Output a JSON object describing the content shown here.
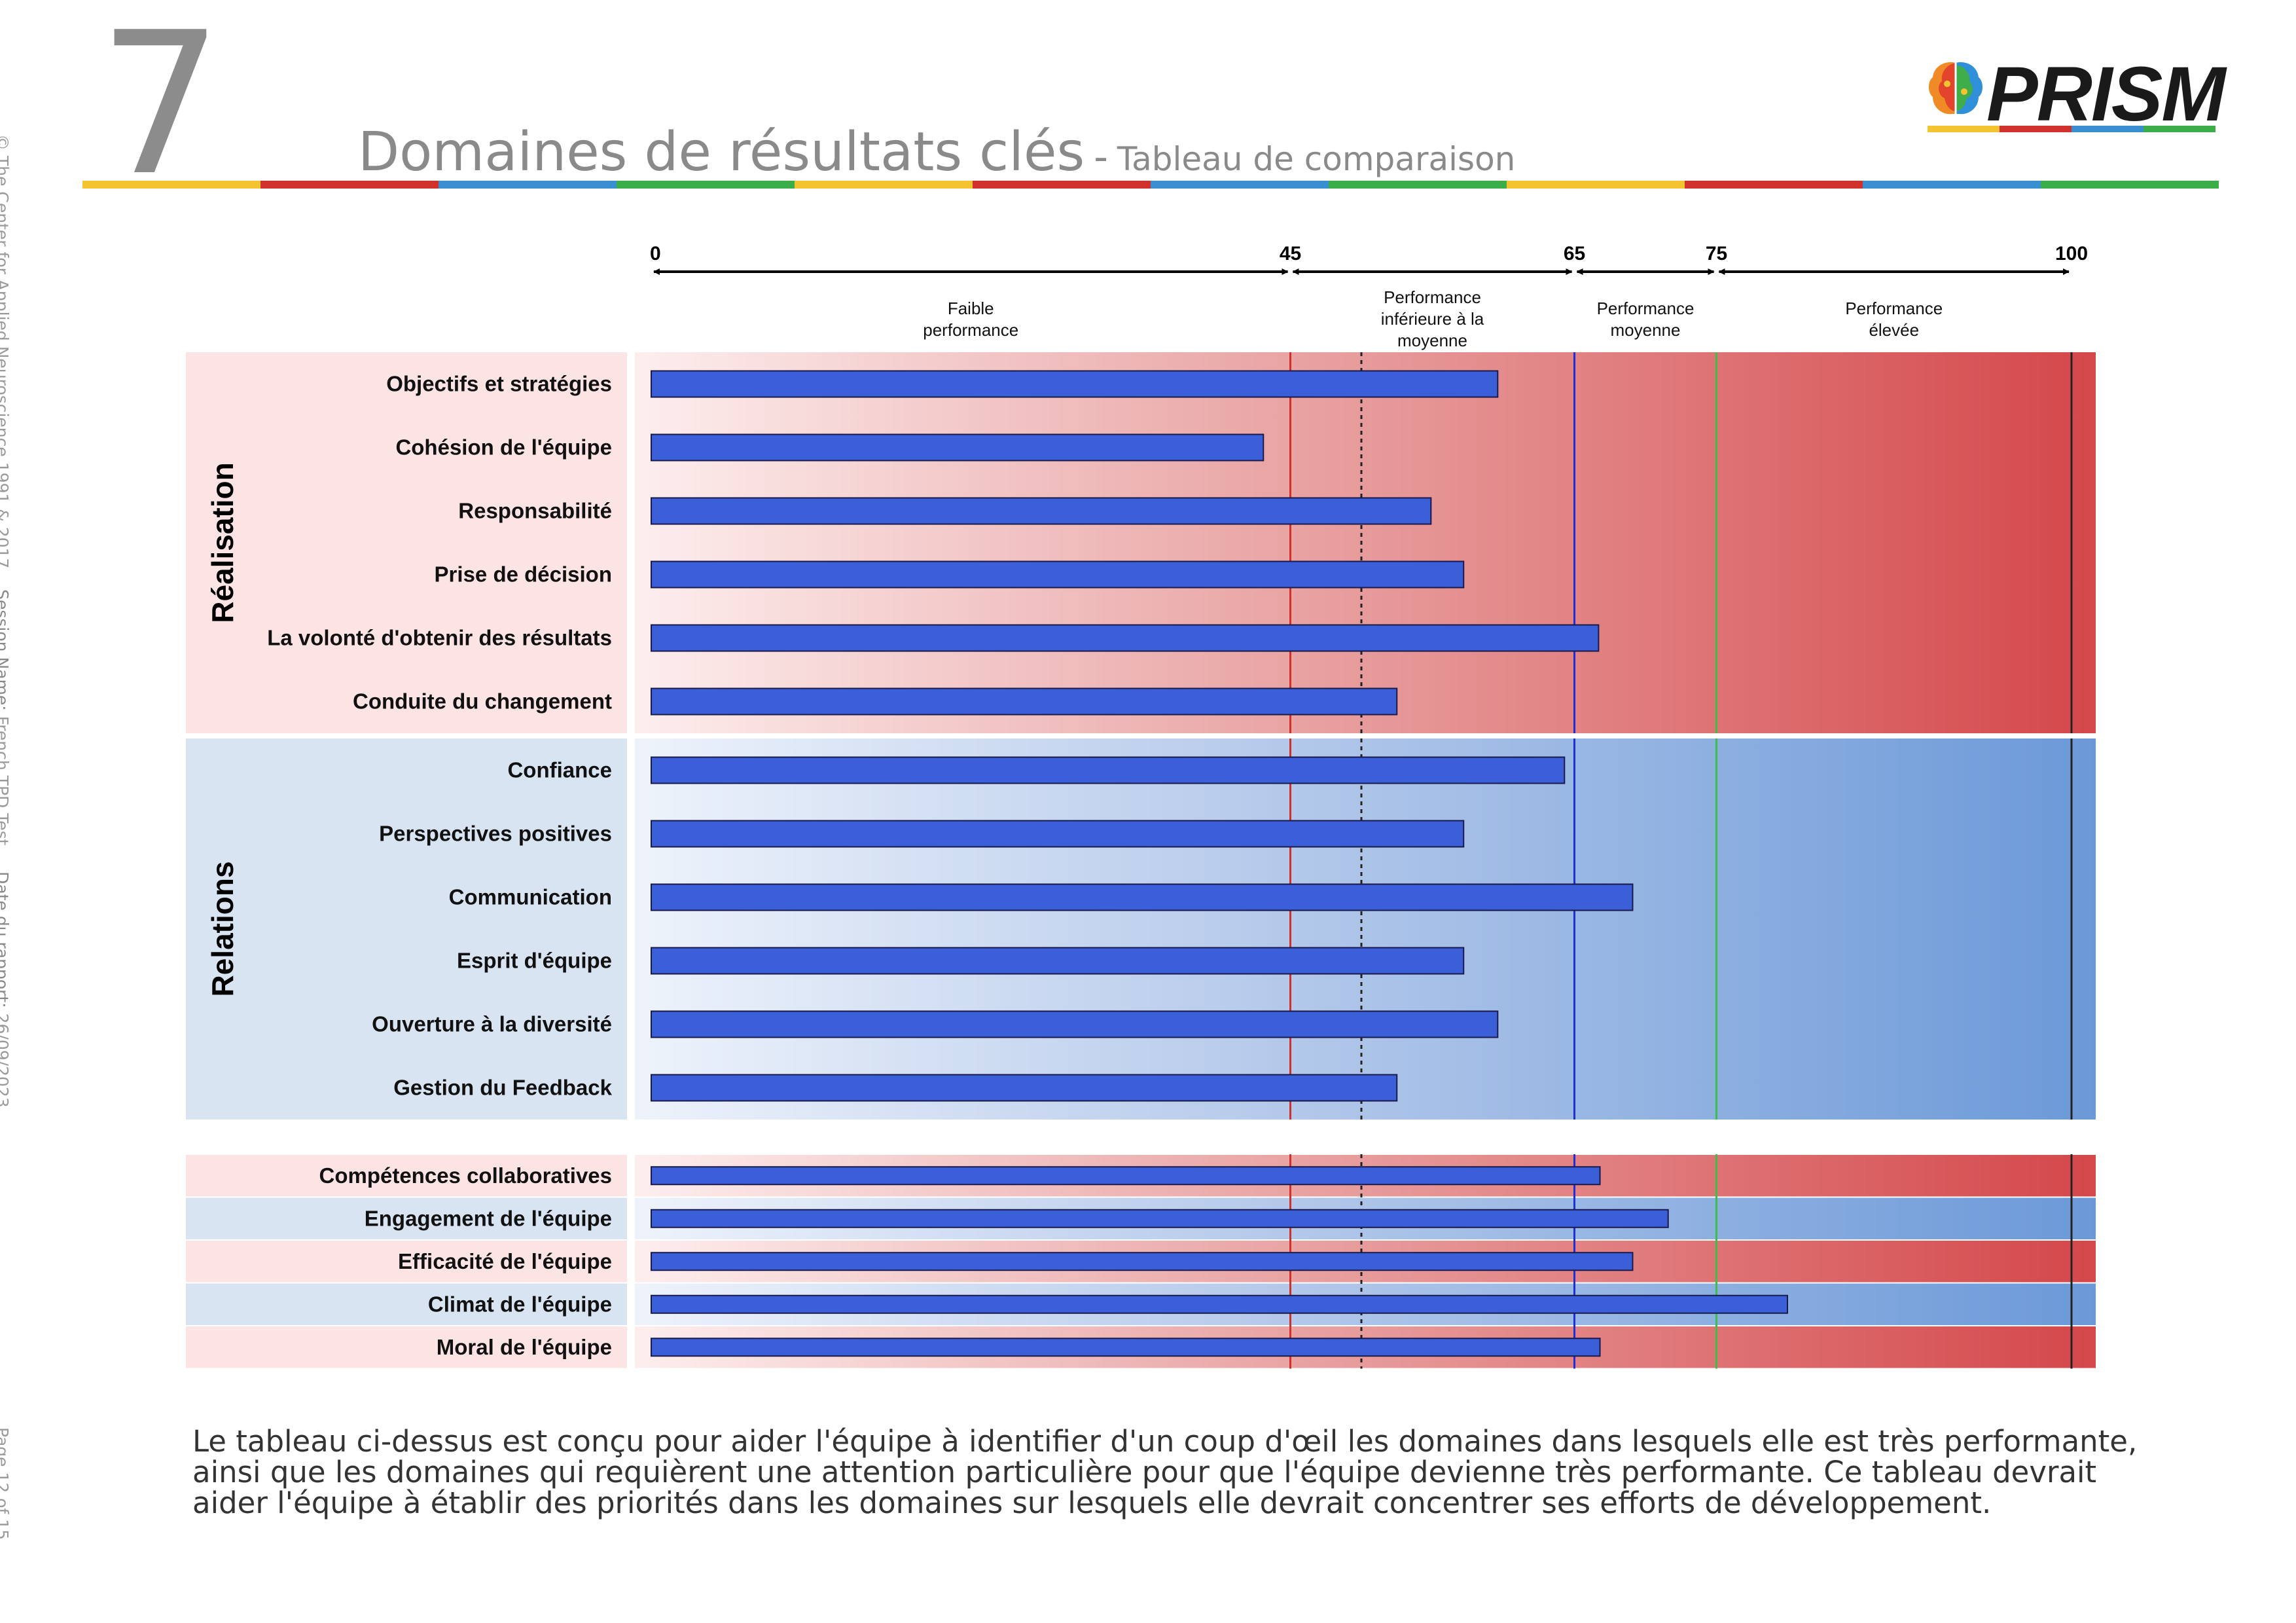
{
  "header": {
    "section_number": "7",
    "title": "Domaines de résultats clés",
    "separator": "-",
    "subtitle": "Tableau de comparaison",
    "logo_text": "PRISM",
    "rule_colors": [
      "#f4c430",
      "#d0312d",
      "#3a8fd0",
      "#3cae49"
    ]
  },
  "sidebar": {
    "copyright": "© The Center for Applied Neuroscience 1991 & 2017.",
    "session_label": "Session Name:",
    "session_value": "French TPD Test",
    "date_label": "Date du rapport:",
    "date_value": "26/09/2023",
    "page": "Page 12 of 15"
  },
  "chart_data": {
    "type": "bar",
    "orientation": "horizontal",
    "xlim": [
      0,
      100
    ],
    "ticks": [
      {
        "value": 0,
        "label": "0"
      },
      {
        "value": 45,
        "label": "45"
      },
      {
        "value": 65,
        "label": "65"
      },
      {
        "value": 75,
        "label": "75"
      },
      {
        "value": 100,
        "label": "100"
      }
    ],
    "bands": [
      {
        "from": 0,
        "to": 45,
        "label": [
          "Faible",
          "performance"
        ]
      },
      {
        "from": 45,
        "to": 65,
        "label": [
          "Performance",
          "inférieure à la",
          "moyenne"
        ]
      },
      {
        "from": 65,
        "to": 75,
        "label": [
          "Performance",
          "moyenne"
        ]
      },
      {
        "from": 75,
        "to": 100,
        "label": [
          "Performance",
          "élevée"
        ]
      }
    ],
    "reference_lines": [
      {
        "value": 45,
        "color": "#d0312d",
        "style": "solid"
      },
      {
        "value": 50,
        "color": "#222222",
        "style": "dotted"
      },
      {
        "value": 65,
        "color": "#1f2fd6",
        "style": "solid"
      },
      {
        "value": 75,
        "color": "#3cbf4a",
        "style": "solid"
      },
      {
        "value": 100,
        "color": "#222222",
        "style": "solid"
      }
    ],
    "bar_color": "#3b5fd9",
    "groups": [
      {
        "name": "Réalisation",
        "theme": "red",
        "categories": [
          "Objectifs et stratégies",
          "Cohésion de l'équipe",
          "Responsabilité",
          "Prise de décision",
          "La volonté d'obtenir des résultats",
          "Conduite du changement"
        ],
        "values": [
          59.6,
          43.1,
          54.9,
          57.2,
          66.7,
          52.5
        ]
      },
      {
        "name": "Relations",
        "theme": "blue",
        "categories": [
          "Confiance",
          "Perspectives positives",
          "Communication",
          "Esprit d'équipe",
          "Ouverture à la diversité",
          "Gestion du Feedback"
        ],
        "values": [
          64.3,
          57.2,
          69.1,
          57.2,
          59.6,
          52.5
        ]
      },
      {
        "name": "",
        "theme": "alternating",
        "categories": [
          "Compétences collaboratives",
          "Engagement de l'équipe",
          "Efficacité de l'équipe",
          "Climat de l'équipe",
          "Moral de l'équipe"
        ],
        "values": [
          66.8,
          71.6,
          69.1,
          80.0,
          66.8
        ]
      }
    ]
  },
  "caption": "Le tableau ci-dessus est conçu pour aider l'équipe à identifier d'un coup d'œil les domaines dans lesquels elle est très performante, ainsi que les domaines qui requièrent une attention particulière pour que l'équipe devienne très performante. Ce tableau devrait aider l'équipe à établir des priorités dans les domaines sur lesquels elle devrait concentrer ses efforts de développement."
}
